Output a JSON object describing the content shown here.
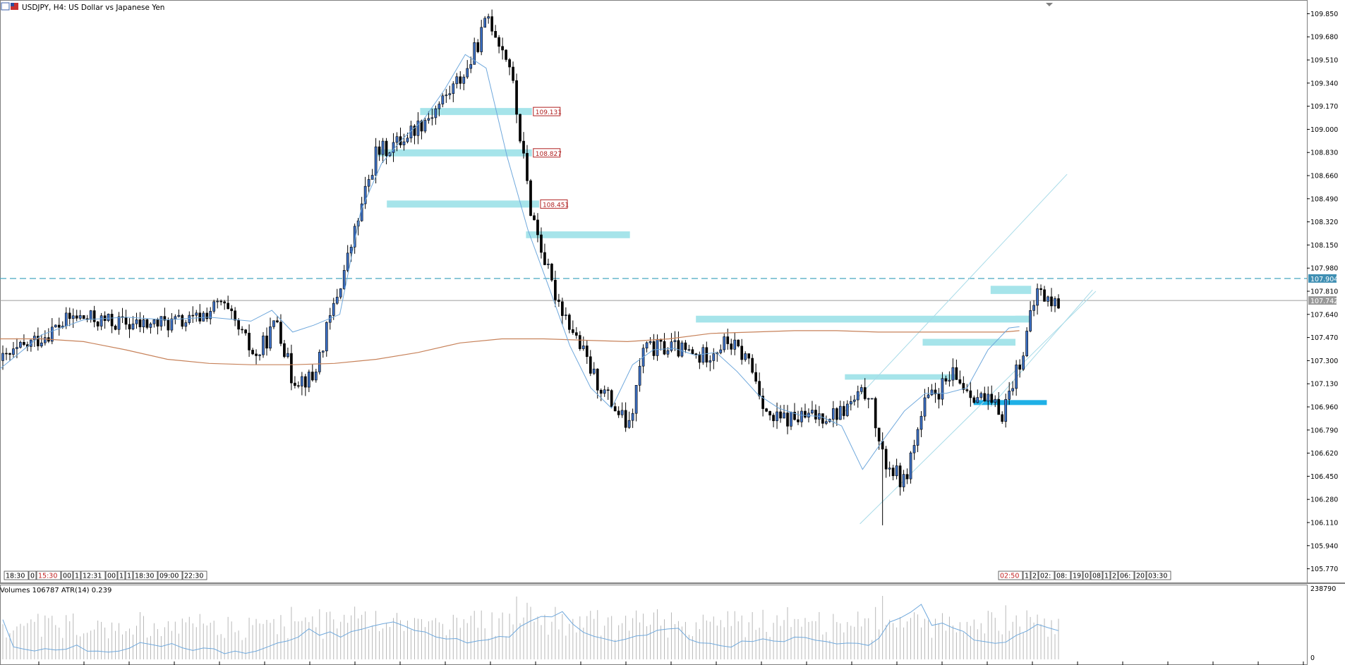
{
  "header": {
    "symbol_title": "USDJPY, H4:  US Dollar vs Japanese Yen",
    "sub_title": "Volumes 106787 ATR(14) 0.239"
  },
  "colors": {
    "bull": "#3b6fc4",
    "bear": "#000000",
    "ma_fast": "#6fa8dc",
    "ma_slow": "#c7825a",
    "zone": "#a6e4ea",
    "zone_strong": "#1fb0e6",
    "channel": "#a8dbe8",
    "dashed": "#4aa7c2",
    "price_line": "#9e9e9e",
    "label_red": "#b02020"
  },
  "chart_data": {
    "type": "candlestick",
    "symbol": "USDJPY",
    "timeframe": "H4",
    "title": "USDJPY, H4:  US Dollar vs Japanese Yen",
    "ylim": [
      105.69,
      109.93
    ],
    "y_ticks": [
      "109.850",
      "109.680",
      "109.510",
      "109.340",
      "109.170",
      "109.000",
      "108.830",
      "108.660",
      "108.490",
      "108.320",
      "108.150",
      "107.980",
      "107.810",
      "107.640",
      "107.470",
      "107.300",
      "107.130",
      "106.960",
      "106.790",
      "106.620",
      "106.450",
      "106.280",
      "106.110",
      "105.940",
      "105.770"
    ],
    "levels": [
      {
        "name": "level-109131",
        "label": "109.131",
        "value": 109.131,
        "x_from": 0.3215,
        "x_to": 0.407
      },
      {
        "name": "level-108827",
        "label": "108.827",
        "value": 108.827,
        "x_from": 0.289,
        "x_to": 0.407
      },
      {
        "name": "level-108451",
        "label": "108.451",
        "value": 108.451,
        "x_from": 0.296,
        "x_to": 0.4125
      }
    ],
    "zones": [
      {
        "y_top": 108.25,
        "y_bot": 108.2,
        "x_from": 0.4025,
        "x_to": 0.482
      },
      {
        "y_top": 107.63,
        "y_bot": 107.58,
        "x_from": 0.5325,
        "x_to": 0.788
      },
      {
        "y_top": 107.2,
        "y_bot": 107.16,
        "x_from": 0.6465,
        "x_to": 0.731
      },
      {
        "y_top": 107.46,
        "y_bot": 107.41,
        "x_from": 0.706,
        "x_to": 0.777
      },
      {
        "y_top": 107.85,
        "y_bot": 107.79,
        "x_from": 0.758,
        "x_to": 0.789
      },
      {
        "y_top": 107.63,
        "y_bot": 107.59,
        "x_from": 0.777,
        "x_to": 0.789
      }
    ],
    "strong_zone": {
      "y_top": 107.01,
      "y_bot": 106.98,
      "x_from": 0.745,
      "x_to": 0.801
    },
    "dashed_level": {
      "label": "107.904",
      "value": 107.904
    },
    "current_price": {
      "label": "107.742",
      "value": 107.742
    },
    "channel_lower": [
      [
        0.658,
        106.1
      ],
      [
        0.8385,
        107.81
      ]
    ],
    "channel_upper": [
      [
        0.637,
        106.83
      ],
      [
        0.8165,
        108.67
      ]
    ],
    "channel_parallel": [
      [
        0.758,
        106.96
      ],
      [
        0.836,
        107.82
      ]
    ],
    "candles": [],
    "ma_fast": [
      [
        0.0,
        107.24
      ],
      [
        0.032,
        107.49
      ],
      [
        0.064,
        107.6
      ],
      [
        0.096,
        107.62
      ],
      [
        0.128,
        107.6
      ],
      [
        0.16,
        107.62
      ],
      [
        0.192,
        107.59
      ],
      [
        0.208,
        107.67
      ],
      [
        0.224,
        107.51
      ],
      [
        0.24,
        107.56
      ],
      [
        0.26,
        107.64
      ],
      [
        0.276,
        108.4
      ],
      [
        0.292,
        108.75
      ],
      [
        0.308,
        108.93
      ],
      [
        0.324,
        109.07
      ],
      [
        0.34,
        109.29
      ],
      [
        0.356,
        109.55
      ],
      [
        0.372,
        109.45
      ],
      [
        0.388,
        108.8
      ],
      [
        0.404,
        108.26
      ],
      [
        0.42,
        107.84
      ],
      [
        0.436,
        107.41
      ],
      [
        0.452,
        107.1
      ],
      [
        0.468,
        106.95
      ],
      [
        0.484,
        107.27
      ],
      [
        0.5,
        107.38
      ],
      [
        0.516,
        107.39
      ],
      [
        0.532,
        107.34
      ],
      [
        0.548,
        107.36
      ],
      [
        0.564,
        107.22
      ],
      [
        0.58,
        107.05
      ],
      [
        0.596,
        106.95
      ],
      [
        0.612,
        106.9
      ],
      [
        0.628,
        106.89
      ],
      [
        0.644,
        106.82
      ],
      [
        0.66,
        106.5
      ],
      [
        0.676,
        106.72
      ],
      [
        0.692,
        106.93
      ],
      [
        0.708,
        107.06
      ],
      [
        0.724,
        107.06
      ],
      [
        0.74,
        107.1
      ],
      [
        0.756,
        107.38
      ],
      [
        0.772,
        107.54
      ],
      [
        0.78,
        107.55
      ]
    ],
    "ma_slow": [
      [
        0.0,
        107.46
      ],
      [
        0.032,
        107.46
      ],
      [
        0.064,
        107.44
      ],
      [
        0.096,
        107.38
      ],
      [
        0.128,
        107.31
      ],
      [
        0.16,
        107.28
      ],
      [
        0.192,
        107.27
      ],
      [
        0.224,
        107.27
      ],
      [
        0.256,
        107.28
      ],
      [
        0.288,
        107.31
      ],
      [
        0.32,
        107.36
      ],
      [
        0.352,
        107.43
      ],
      [
        0.384,
        107.46
      ],
      [
        0.416,
        107.46
      ],
      [
        0.448,
        107.45
      ],
      [
        0.48,
        107.44
      ],
      [
        0.512,
        107.46
      ],
      [
        0.544,
        107.5
      ],
      [
        0.576,
        107.51
      ],
      [
        0.608,
        107.52
      ],
      [
        0.64,
        107.52
      ],
      [
        0.672,
        107.51
      ],
      [
        0.704,
        107.51
      ],
      [
        0.736,
        107.51
      ],
      [
        0.768,
        107.51
      ],
      [
        0.78,
        107.52
      ]
    ],
    "time_labels_left": [
      "18:30",
      "0",
      "15:30",
      "00",
      "1",
      "12:31",
      "00",
      "1",
      "1",
      "18:30",
      "09:00",
      "22:30"
    ],
    "time_labels_right": [
      "02:50",
      "1",
      "2",
      "02:",
      "08:",
      "19",
      "0",
      "08",
      "1",
      "2",
      "06:",
      "20",
      "03:30"
    ]
  },
  "volume_panel": {
    "label": "Volumes 106787 ATR(14) 0.239",
    "max_label": "238790",
    "min_label": "0"
  }
}
